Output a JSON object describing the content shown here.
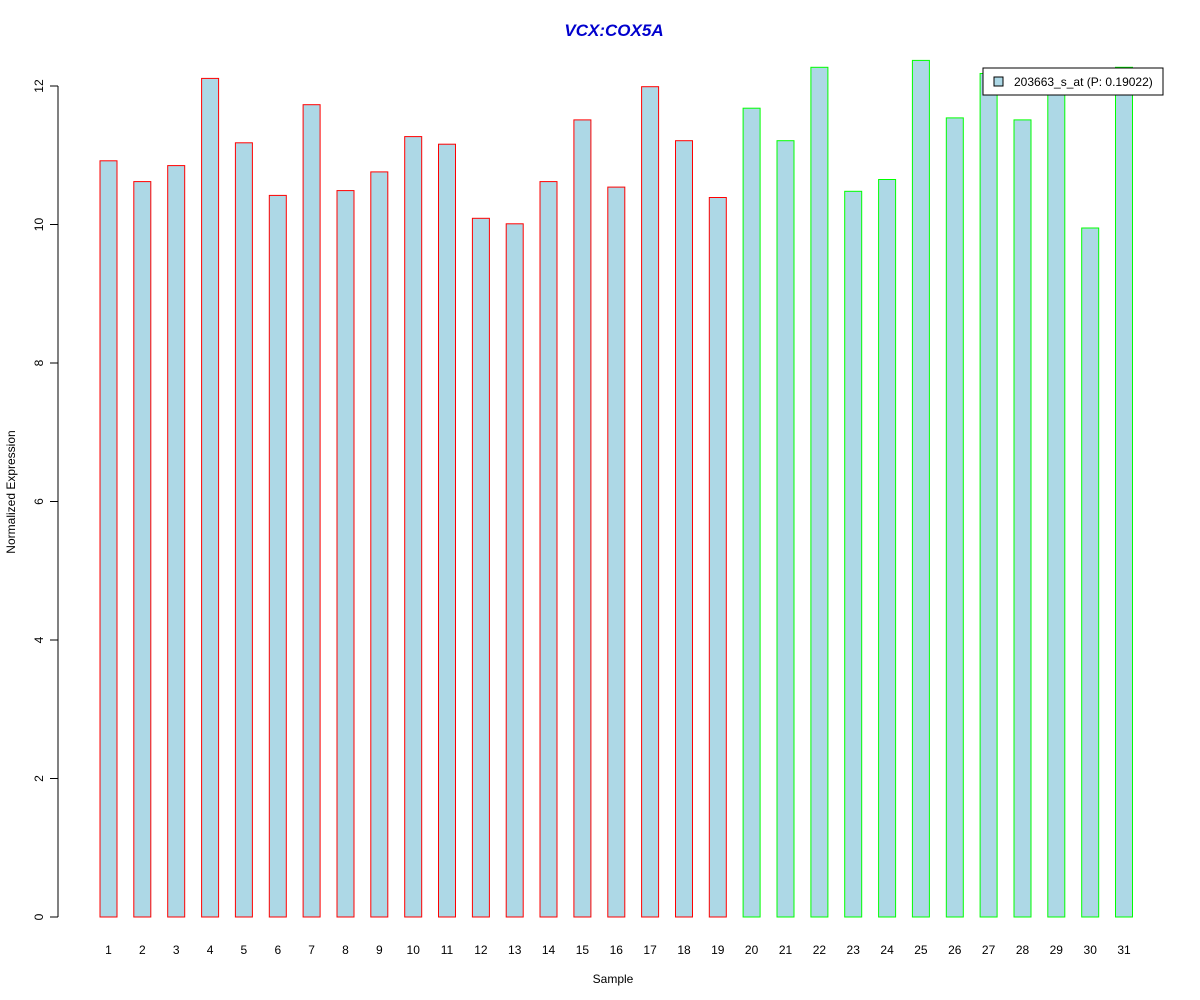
{
  "chart_data": {
    "type": "bar",
    "title": "VCX:COX5A",
    "xlabel": "Sample",
    "ylabel": "Normalized Expression",
    "ylim": [
      0,
      12.5
    ],
    "yticks": [
      "0",
      "2",
      "4",
      "6",
      "8",
      "10",
      "12"
    ],
    "grid": false,
    "legend_position": "top-right",
    "categories": [
      "1",
      "2",
      "3",
      "4",
      "5",
      "6",
      "7",
      "8",
      "9",
      "10",
      "11",
      "12",
      "13",
      "14",
      "15",
      "16",
      "17",
      "18",
      "19",
      "20",
      "21",
      "22",
      "23",
      "24",
      "25",
      "26",
      "27",
      "28",
      "29",
      "30",
      "31"
    ],
    "series": [
      {
        "name": "203663_s_at (P: 0.19022)",
        "values": [
          10.92,
          10.62,
          10.85,
          12.11,
          11.18,
          10.42,
          11.73,
          10.49,
          10.76,
          11.27,
          11.16,
          10.09,
          10.01,
          10.62,
          11.51,
          10.54,
          11.99,
          11.21,
          10.39,
          11.68,
          11.21,
          12.27,
          10.48,
          10.65,
          12.37,
          11.54,
          12.18,
          11.51,
          11.94,
          9.95,
          12.27
        ]
      }
    ],
    "colors": {
      "fill": "#add8e6",
      "group1_border": "#ff0000",
      "group2_border": "#00ff00",
      "title": "#0000cd"
    },
    "groups": [
      1,
      1,
      1,
      1,
      1,
      1,
      1,
      1,
      1,
      1,
      1,
      1,
      1,
      1,
      1,
      1,
      1,
      1,
      1,
      2,
      2,
      2,
      2,
      2,
      2,
      2,
      2,
      2,
      2,
      2,
      2
    ]
  }
}
